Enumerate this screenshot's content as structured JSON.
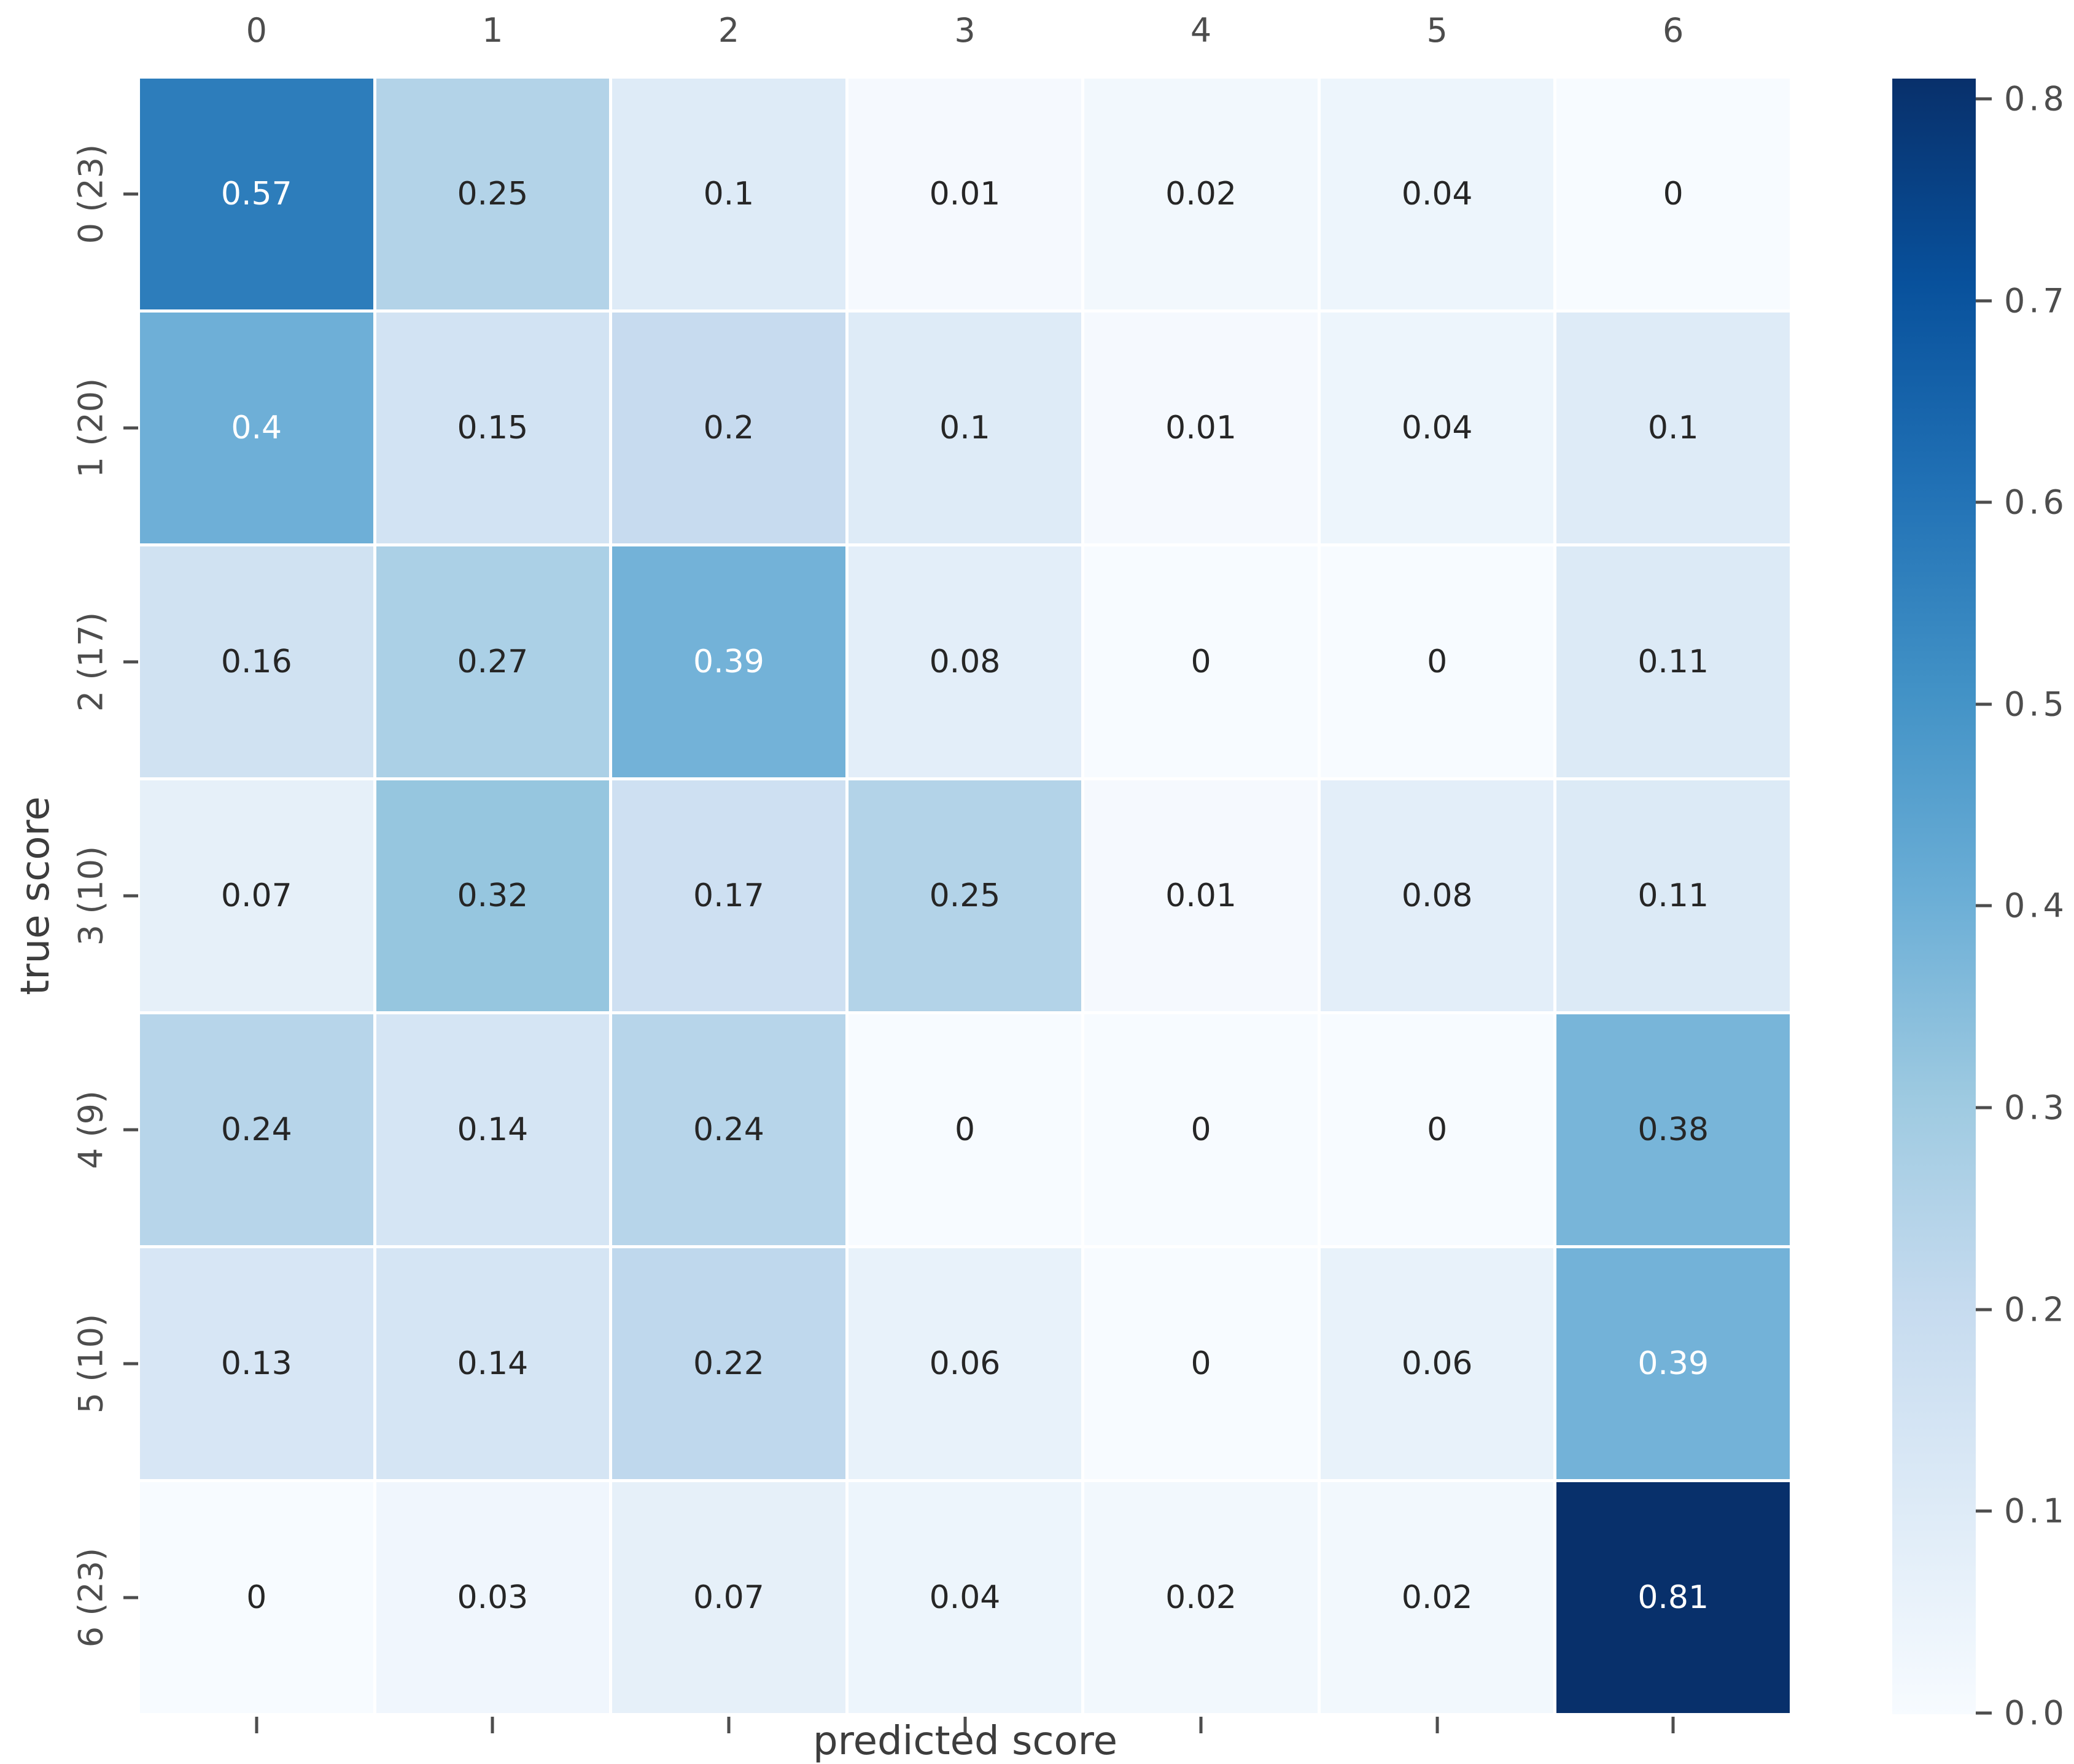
{
  "chart_data": {
    "type": "heatmap",
    "title": "",
    "xlabel": "predicted score",
    "ylabel": "true score",
    "x_categories": [
      "0",
      "1",
      "2",
      "3",
      "4",
      "5",
      "6"
    ],
    "y_categories": [
      "0 (23)",
      "1 (20)",
      "2 (17)",
      "3 (10)",
      "4 (9)",
      "5 (10)",
      "6 (23)"
    ],
    "matrix": [
      [
        0.57,
        0.25,
        0.1,
        0.01,
        0.02,
        0.04,
        0
      ],
      [
        0.4,
        0.15,
        0.2,
        0.1,
        0.01,
        0.04,
        0.1
      ],
      [
        0.16,
        0.27,
        0.39,
        0.08,
        0,
        0,
        0.11
      ],
      [
        0.07,
        0.32,
        0.17,
        0.25,
        0.01,
        0.08,
        0.11
      ],
      [
        0.24,
        0.14,
        0.24,
        0,
        0,
        0,
        0.38
      ],
      [
        0.13,
        0.14,
        0.22,
        0.06,
        0,
        0.06,
        0.39
      ],
      [
        0,
        0.03,
        0.07,
        0.04,
        0.02,
        0.02,
        0.81
      ]
    ],
    "annotations_shown": true,
    "vmin": 0,
    "vmax": 0.81,
    "grid": false,
    "cell_gap_color": "#ffffff",
    "colormap": {
      "name": "Blues",
      "anchors": [
        [
          0.0,
          "#f7fbff"
        ],
        [
          0.125,
          "#deebf7"
        ],
        [
          0.25,
          "#c6dbef"
        ],
        [
          0.375,
          "#9ecae1"
        ],
        [
          0.5,
          "#6baed6"
        ],
        [
          0.625,
          "#4292c6"
        ],
        [
          0.75,
          "#2171b5"
        ],
        [
          0.875,
          "#08519c"
        ],
        [
          1.0,
          "#08306b"
        ]
      ]
    },
    "colorbar": {
      "position": "right",
      "ticks": [
        0.8,
        0.7,
        0.6,
        0.5,
        0.4,
        0.3,
        0.2,
        0.1,
        0.0
      ],
      "tick_labels": [
        "0.8",
        "0.7",
        "0.6",
        "0.5",
        "0.4",
        "0.3",
        "0.2",
        "0.1",
        "0.0"
      ]
    }
  },
  "style": {
    "annotation_color_dark": "#262626",
    "annotation_color_light": "#ffffff",
    "luminance_threshold": 0.408,
    "tick_color": "#4d4d4d",
    "axis_label_color": "#3d3d3d",
    "background": "#ffffff"
  }
}
